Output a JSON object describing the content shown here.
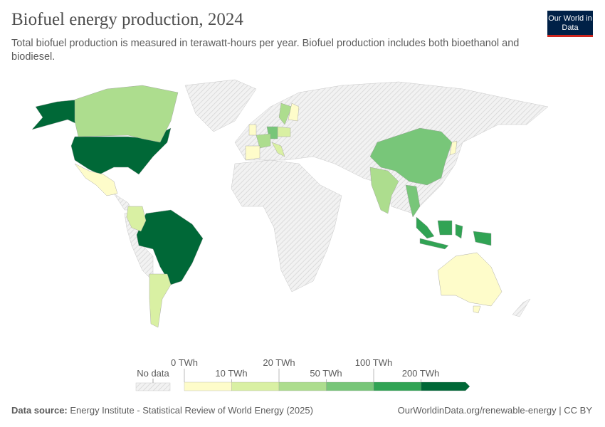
{
  "header": {
    "title": "Biofuel energy production, 2024",
    "subtitle": "Total biofuel production is measured in terawatt-hours per year. Biofuel production includes both bioethanol and biodiesel.",
    "logo": "Our World in Data"
  },
  "legend": {
    "no_data_label": "No data",
    "upper_ticks": [
      "0 TWh",
      "20 TWh",
      "100 TWh"
    ],
    "lower_ticks": [
      "10 TWh",
      "50 TWh",
      "200 TWh"
    ],
    "bins": [
      {
        "range": "0–10 TWh",
        "color": "#fefcca"
      },
      {
        "range": "10–20 TWh",
        "color": "#d9f0a3"
      },
      {
        "range": "20–50 TWh",
        "color": "#addd8e"
      },
      {
        "range": "50–100 TWh",
        "color": "#78c679"
      },
      {
        "range": "100–200 TWh",
        "color": "#31a354"
      },
      {
        "range": ">200 TWh",
        "color": "#006837"
      }
    ],
    "no_data_color": "#dddddd"
  },
  "map_data": {
    "countries": [
      {
        "name": "United States",
        "bin": 5
      },
      {
        "name": "Brazil",
        "bin": 5
      },
      {
        "name": "Indonesia",
        "bin": 4
      },
      {
        "name": "China",
        "bin": 3
      },
      {
        "name": "Thailand",
        "bin": 3
      },
      {
        "name": "Germany",
        "bin": 3
      },
      {
        "name": "Canada",
        "bin": 2
      },
      {
        "name": "India",
        "bin": 2
      },
      {
        "name": "France",
        "bin": 2
      },
      {
        "name": "Sweden",
        "bin": 2
      },
      {
        "name": "Argentina",
        "bin": 1
      },
      {
        "name": "Colombia",
        "bin": 1
      },
      {
        "name": "Poland",
        "bin": 1
      },
      {
        "name": "Italy",
        "bin": 1
      },
      {
        "name": "Mexico",
        "bin": 0
      },
      {
        "name": "Australia",
        "bin": 0
      },
      {
        "name": "Spain",
        "bin": 0
      },
      {
        "name": "Finland",
        "bin": 0
      },
      {
        "name": "United Kingdom",
        "bin": 0
      },
      {
        "name": "Japan",
        "bin": 0
      }
    ]
  },
  "footer": {
    "source_label": "Data source:",
    "source": "Energy Institute - Statistical Review of World Energy (2025)",
    "url": "OurWorldinData.org/renewable-energy | CC BY"
  }
}
